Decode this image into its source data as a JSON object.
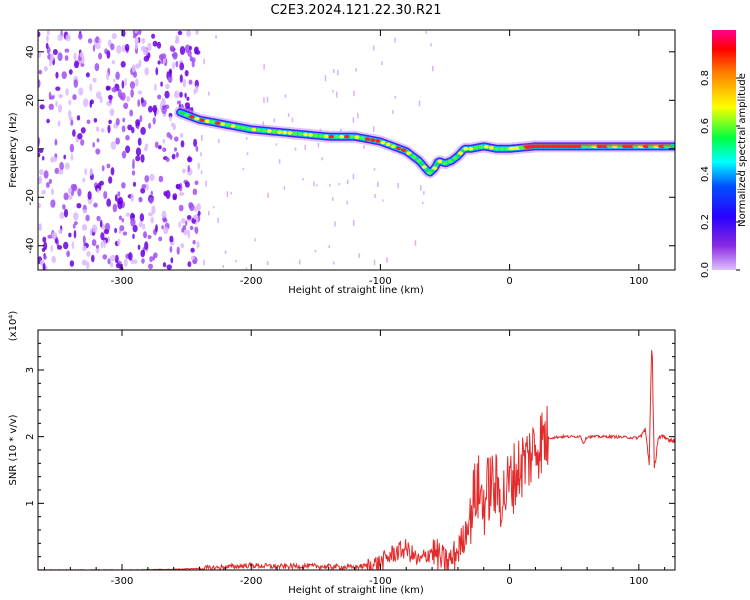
{
  "title": "C2E3.2024.121.22.30.R21",
  "chart_data": [
    {
      "type": "heatmap",
      "xlabel": "Height of straight line (km)",
      "ylabel": "Frequency (Hz)",
      "xlim": [
        -365,
        128
      ],
      "ylim": [
        -50,
        49
      ],
      "xticks": [
        -300,
        -200,
        -100,
        0,
        100
      ],
      "yticks": [
        -40,
        -20,
        0,
        20,
        40
      ],
      "colorbar": {
        "label": "Normalized spectral amplitude",
        "range": [
          0.0,
          1.0
        ],
        "ticks": [
          0.0,
          0.2,
          0.4,
          0.6,
          0.8
        ],
        "colormap": [
          "#d9b3ff",
          "#5a00ff",
          "#0033ff",
          "#00ffff",
          "#00ff00",
          "#ffff00",
          "#ff0000",
          "#ff00a0"
        ]
      },
      "ridge": {
        "x": [
          -255,
          -240,
          -220,
          -200,
          -180,
          -160,
          -140,
          -120,
          -100,
          -90,
          -80,
          -70,
          -62,
          -58,
          -55,
          -50,
          -45,
          -40,
          -35,
          -30,
          -20,
          -10,
          0,
          20,
          40,
          60,
          80,
          100,
          110,
          128
        ],
        "y": [
          15,
          12,
          10,
          8,
          7,
          6,
          5,
          5,
          3,
          1,
          -1,
          -5,
          -10,
          -8,
          -5,
          -6,
          -5,
          -3,
          0,
          0,
          1,
          0,
          0,
          1,
          1,
          1,
          1,
          1,
          1,
          1
        ]
      },
      "noise_region": {
        "x_from": -365,
        "x_to": -240
      }
    },
    {
      "type": "line",
      "xlabel": "Height of straight line (km)",
      "ylabel": "SNR (10 * v/v)",
      "y_multiplier": "(x10⁴)",
      "xlim": [
        -365,
        128
      ],
      "ylim": [
        0,
        3.6
      ],
      "xticks": [
        -300,
        -200,
        -100,
        0,
        100
      ],
      "yticks": [
        1,
        2,
        3
      ],
      "series": [
        {
          "color": "#e32b2b",
          "x": [
            -365,
            -300,
            -260,
            -230,
            -200,
            -180,
            -160,
            -140,
            -120,
            -105,
            -100,
            -90,
            -80,
            -70,
            -60,
            -50,
            -45,
            -40,
            -35,
            -30,
            -25,
            -20,
            -15,
            -10,
            -5,
            0,
            5,
            10,
            15,
            20,
            25,
            30,
            40,
            50,
            55,
            57,
            60,
            70,
            80,
            90,
            100,
            105,
            108,
            110,
            112,
            115,
            120,
            128
          ],
          "y": [
            0.0,
            0.0,
            0.01,
            0.03,
            0.07,
            0.05,
            0.06,
            0.05,
            0.04,
            0.08,
            0.1,
            0.25,
            0.32,
            0.12,
            0.3,
            0.1,
            0.15,
            0.3,
            0.5,
            0.9,
            1.25,
            1.0,
            1.3,
            1.2,
            1.1,
            1.3,
            1.45,
            1.6,
            1.7,
            1.85,
            1.95,
            1.98,
            2.0,
            2.0,
            2.01,
            1.9,
            2.0,
            2.0,
            2.0,
            1.99,
            1.98,
            2.1,
            1.6,
            3.5,
            1.5,
            2.0,
            1.97,
            1.95
          ]
        }
      ]
    }
  ]
}
